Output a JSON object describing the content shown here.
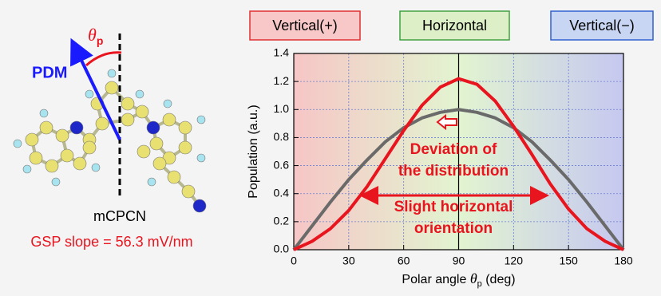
{
  "chart_data": {
    "type": "line",
    "regions": [
      {
        "label": "Vertical(+)",
        "color": "#f8c8c8",
        "border": "#e03030"
      },
      {
        "label": "Horizontal",
        "color": "#dcefc6",
        "border": "#40a040"
      },
      {
        "label": "Vertical(−)",
        "color": "#c8d6f4",
        "border": "#3060d0"
      }
    ],
    "x": [
      0,
      10,
      20,
      30,
      40,
      50,
      60,
      70,
      80,
      90,
      100,
      110,
      120,
      130,
      140,
      150,
      160,
      170,
      180
    ],
    "series": [
      {
        "color": "#6a6a6a",
        "values": [
          0,
          0.17,
          0.34,
          0.5,
          0.64,
          0.77,
          0.87,
          0.94,
          0.98,
          1.0,
          0.98,
          0.94,
          0.87,
          0.77,
          0.64,
          0.5,
          0.34,
          0.17,
          0
        ]
      },
      {
        "color": "#e8141e",
        "values": [
          0,
          0.06,
          0.15,
          0.28,
          0.45,
          0.65,
          0.85,
          1.03,
          1.16,
          1.22,
          1.18,
          1.06,
          0.88,
          0.68,
          0.47,
          0.29,
          0.15,
          0.06,
          0
        ]
      }
    ],
    "xlim": [
      0,
      180
    ],
    "xticks": [
      0,
      30,
      60,
      90,
      120,
      150,
      180
    ],
    "ylim": [
      0,
      1.4
    ],
    "yticks": [
      {
        "value": 0,
        "label": "0.0"
      },
      0.2,
      0.4,
      0.6,
      0.8,
      {
        "value": 1,
        "label": "1.0"
      },
      1.2,
      1.4
    ],
    "grid": true,
    "x_label": [
      "Polar angle ",
      "θ",
      "p",
      " (deg)"
    ],
    "y_label": "Population (a.u.)",
    "annotations": [
      [
        "Deviation of",
        "the distribution"
      ],
      [
        "Slight horizontal",
        "orientation"
      ]
    ]
  },
  "molecule": {
    "name": "mCPCN",
    "dipole_label": "PDM",
    "angle_label": [
      "θ",
      "p"
    ],
    "note": "GSP slope = 56.3 mV/nm"
  }
}
